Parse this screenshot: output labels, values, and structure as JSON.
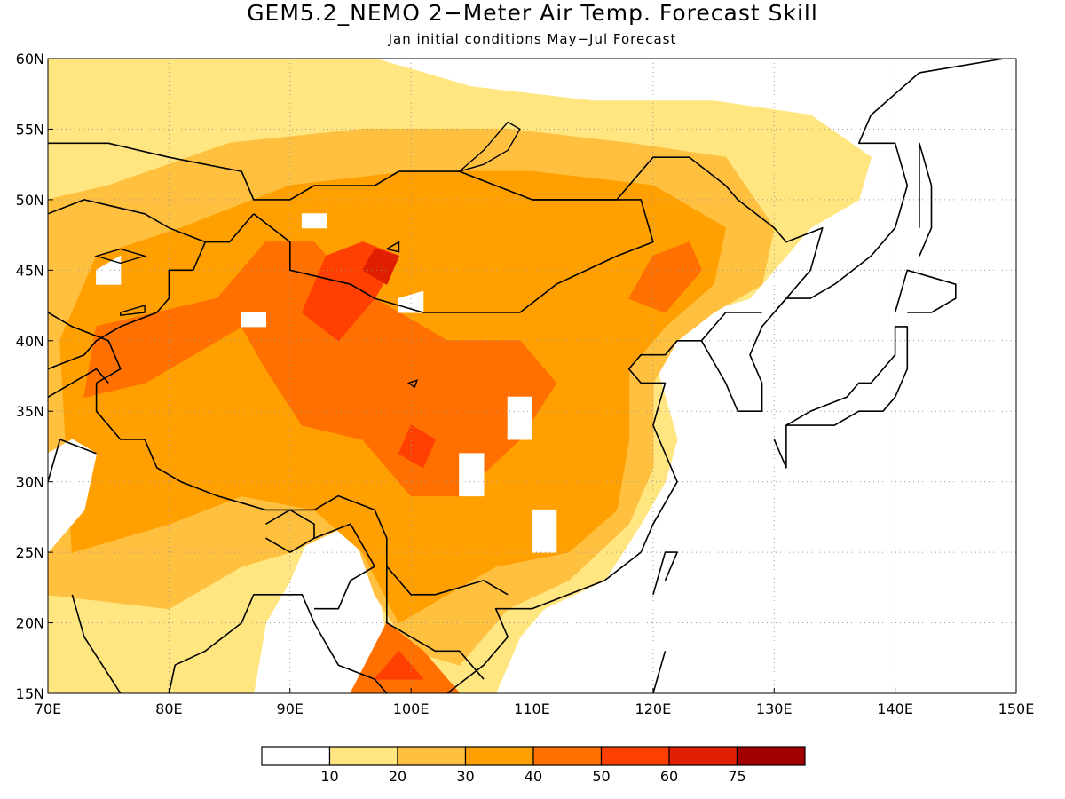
{
  "title": "GEM5.2_NEMO 2−Meter Air Temp. Forecast Skill",
  "subtitle": "Jan initial conditions  May−Jul Forecast",
  "axes": {
    "lon_labels": [
      "70E",
      "80E",
      "90E",
      "100E",
      "110E",
      "120E",
      "130E",
      "140E",
      "150E"
    ],
    "lon_values": [
      70,
      80,
      90,
      100,
      110,
      120,
      130,
      140,
      150
    ],
    "lat_labels": [
      "15N",
      "20N",
      "25N",
      "30N",
      "35N",
      "40N",
      "45N",
      "50N",
      "55N",
      "60N"
    ],
    "lat_values": [
      15,
      20,
      25,
      30,
      35,
      40,
      45,
      50,
      55,
      60
    ],
    "lon_range": [
      70,
      150
    ],
    "lat_range": [
      15,
      60
    ],
    "grid": "dotted"
  },
  "colorbar": {
    "levels": [
      "10",
      "20",
      "30",
      "40",
      "50",
      "60",
      "75"
    ],
    "colors": [
      "#ffffff",
      "#ffe680",
      "#ffc040",
      "#ffa000",
      "#ff7000",
      "#ff4000",
      "#e01e00",
      "#a00000"
    ]
  },
  "field_regions": [
    {
      "level": 1,
      "points": [
        [
          70,
          15
        ],
        [
          87,
          15
        ],
        [
          88,
          20
        ],
        [
          90,
          23
        ],
        [
          92,
          27
        ],
        [
          96,
          29
        ],
        [
          97,
          24
        ],
        [
          98,
          19
        ],
        [
          100,
          15
        ],
        [
          107,
          15
        ],
        [
          109,
          19
        ],
        [
          111,
          21
        ],
        [
          116,
          23
        ],
        [
          119,
          27
        ],
        [
          121,
          30
        ],
        [
          122,
          33
        ],
        [
          121,
          36
        ],
        [
          120,
          39
        ],
        [
          122,
          41
        ],
        [
          124,
          42
        ],
        [
          128,
          43
        ],
        [
          130,
          45
        ],
        [
          133,
          48
        ],
        [
          137,
          50
        ],
        [
          138,
          53
        ],
        [
          133,
          56
        ],
        [
          125,
          57
        ],
        [
          115,
          57
        ],
        [
          105,
          58
        ],
        [
          97,
          60
        ],
        [
          70,
          60
        ]
      ]
    },
    {
      "level": 2,
      "points": [
        [
          70,
          22
        ],
        [
          80,
          21
        ],
        [
          86,
          24
        ],
        [
          90,
          25
        ],
        [
          95,
          27
        ],
        [
          97,
          22
        ],
        [
          100,
          18
        ],
        [
          104,
          17
        ],
        [
          108,
          21
        ],
        [
          113,
          23
        ],
        [
          118,
          27
        ],
        [
          120,
          31
        ],
        [
          120,
          37
        ],
        [
          122,
          40
        ],
        [
          125,
          42
        ],
        [
          129,
          44
        ],
        [
          130,
          48
        ],
        [
          126,
          53
        ],
        [
          118,
          54
        ],
        [
          108,
          55
        ],
        [
          96,
          55
        ],
        [
          85,
          54
        ],
        [
          75,
          51
        ],
        [
          70,
          50
        ]
      ]
    },
    {
      "level": 3,
      "points": [
        [
          72,
          25
        ],
        [
          80,
          27
        ],
        [
          86,
          29
        ],
        [
          92,
          28
        ],
        [
          96,
          25
        ],
        [
          99,
          20
        ],
        [
          103,
          22
        ],
        [
          107,
          24
        ],
        [
          113,
          25
        ],
        [
          117,
          28
        ],
        [
          118,
          33
        ],
        [
          118,
          38
        ],
        [
          121,
          41
        ],
        [
          125,
          44
        ],
        [
          126,
          48
        ],
        [
          120,
          51
        ],
        [
          110,
          52
        ],
        [
          100,
          52
        ],
        [
          90,
          51
        ],
        [
          81,
          48
        ],
        [
          74,
          46
        ],
        [
          71,
          40
        ]
      ]
    },
    {
      "level": 4,
      "points": [
        [
          73,
          36
        ],
        [
          78,
          37
        ],
        [
          82,
          39
        ],
        [
          86,
          41
        ],
        [
          88,
          38
        ],
        [
          91,
          34
        ],
        [
          96,
          33
        ],
        [
          100,
          29
        ],
        [
          104,
          29
        ],
        [
          109,
          33
        ],
        [
          112,
          37
        ],
        [
          109,
          40
        ],
        [
          103,
          40
        ],
        [
          99,
          42
        ],
        [
          95,
          44
        ],
        [
          92,
          47
        ],
        [
          88,
          47
        ],
        [
          84,
          43
        ],
        [
          79,
          42
        ],
        [
          74,
          41
        ]
      ]
    },
    {
      "level": 4,
      "points": [
        [
          95,
          15
        ],
        [
          98,
          20
        ],
        [
          101,
          18
        ],
        [
          104,
          15
        ]
      ]
    },
    {
      "level": 4,
      "points": [
        [
          118,
          43
        ],
        [
          121,
          42
        ],
        [
          124,
          45
        ],
        [
          123,
          47
        ],
        [
          120,
          46
        ]
      ]
    },
    {
      "level": 5,
      "points": [
        [
          91,
          42
        ],
        [
          94,
          40
        ],
        [
          97,
          43
        ],
        [
          99,
          46
        ],
        [
          96,
          47
        ],
        [
          93,
          46
        ]
      ]
    },
    {
      "level": 5,
      "points": [
        [
          99,
          32
        ],
        [
          101,
          31
        ],
        [
          102,
          33
        ],
        [
          100,
          34
        ]
      ]
    },
    {
      "level": 5,
      "points": [
        [
          97,
          16
        ],
        [
          99,
          18
        ],
        [
          101,
          16
        ]
      ]
    },
    {
      "level": 6,
      "points": [
        [
          96,
          45
        ],
        [
          98,
          44
        ],
        [
          99,
          46
        ],
        [
          97,
          46.5
        ]
      ]
    },
    {
      "level": 0,
      "points": [
        [
          74,
          45
        ],
        [
          76,
          46
        ],
        [
          76,
          44
        ],
        [
          74,
          44
        ]
      ]
    },
    {
      "level": 0,
      "points": [
        [
          99,
          43
        ],
        [
          101,
          43.5
        ],
        [
          101,
          42
        ],
        [
          99,
          42
        ]
      ]
    },
    {
      "level": 0,
      "points": [
        [
          108,
          36
        ],
        [
          110,
          36
        ],
        [
          110,
          33
        ],
        [
          108,
          33
        ]
      ]
    },
    {
      "level": 0,
      "points": [
        [
          104,
          32
        ],
        [
          106,
          32
        ],
        [
          106,
          29
        ],
        [
          104,
          29
        ]
      ]
    },
    {
      "level": 0,
      "points": [
        [
          70,
          25
        ],
        [
          73,
          28
        ],
        [
          74,
          32
        ],
        [
          72,
          33
        ],
        [
          70,
          32
        ]
      ]
    },
    {
      "level": 0,
      "points": [
        [
          110,
          28
        ],
        [
          112,
          28
        ],
        [
          112,
          25
        ],
        [
          110,
          25
        ]
      ]
    },
    {
      "level": 0,
      "points": [
        [
          86,
          42
        ],
        [
          88,
          42
        ],
        [
          88,
          41
        ],
        [
          86,
          41
        ]
      ]
    },
    {
      "level": 0,
      "points": [
        [
          91,
          49
        ],
        [
          93,
          49
        ],
        [
          93,
          48
        ],
        [
          91,
          48
        ]
      ]
    }
  ],
  "coastlines": [
    [
      [
        72,
        22
      ],
      [
        73,
        19
      ],
      [
        76,
        15
      ]
    ],
    [
      [
        80,
        15
      ],
      [
        80.5,
        17
      ],
      [
        83,
        18
      ],
      [
        86,
        20
      ],
      [
        87,
        22
      ],
      [
        89,
        22
      ],
      [
        91,
        22
      ],
      [
        92,
        20
      ],
      [
        94,
        17
      ],
      [
        97,
        16
      ],
      [
        98,
        15
      ]
    ],
    [
      [
        100,
        15
      ],
      [
        101,
        14.5
      ]
    ],
    [
      [
        103,
        15
      ],
      [
        106,
        17
      ],
      [
        108,
        19
      ],
      [
        107,
        21
      ],
      [
        110,
        21
      ],
      [
        113,
        22
      ],
      [
        116,
        23
      ],
      [
        119,
        25
      ],
      [
        120,
        27
      ],
      [
        122,
        30
      ],
      [
        121,
        32
      ],
      [
        120,
        34
      ],
      [
        121,
        37
      ],
      [
        119,
        37
      ],
      [
        118,
        38
      ],
      [
        119,
        39
      ],
      [
        121,
        39
      ],
      [
        122,
        40
      ],
      [
        124,
        40
      ],
      [
        126,
        37
      ],
      [
        127,
        35
      ],
      [
        129,
        35
      ],
      [
        129,
        37
      ],
      [
        128,
        39
      ],
      [
        129,
        41
      ],
      [
        131,
        43
      ],
      [
        133,
        43
      ],
      [
        135,
        44
      ],
      [
        138,
        46
      ],
      [
        140,
        48
      ],
      [
        141,
        51
      ],
      [
        140,
        54
      ],
      [
        137,
        54
      ],
      [
        138,
        56
      ],
      [
        142,
        59
      ],
      [
        149,
        60
      ]
    ],
    [
      [
        130,
        33
      ],
      [
        131,
        31
      ],
      [
        131,
        34
      ],
      [
        133,
        34
      ],
      [
        135,
        34
      ],
      [
        137,
        35
      ],
      [
        139,
        35
      ],
      [
        140,
        36
      ],
      [
        141,
        38
      ],
      [
        141,
        41
      ],
      [
        140,
        41
      ],
      [
        140,
        39
      ],
      [
        139,
        38
      ],
      [
        138,
        37
      ],
      [
        137,
        37
      ],
      [
        136,
        36
      ],
      [
        133,
        35
      ],
      [
        131,
        34
      ]
    ],
    [
      [
        140,
        42
      ],
      [
        141,
        45
      ],
      [
        145,
        44
      ],
      [
        145,
        43
      ],
      [
        143,
        42
      ],
      [
        141,
        42
      ]
    ],
    [
      [
        142,
        46
      ],
      [
        143,
        48
      ],
      [
        143,
        51
      ],
      [
        142,
        54
      ],
      [
        142,
        51
      ],
      [
        142,
        48
      ]
    ],
    [
      [
        120,
        22
      ],
      [
        121,
        25
      ],
      [
        122,
        25
      ],
      [
        121,
        23
      ]
    ],
    [
      [
        120,
        15
      ],
      [
        121,
        18
      ]
    ]
  ],
  "borders": [
    [
      [
        70,
        54
      ],
      [
        75,
        54
      ],
      [
        80,
        53
      ],
      [
        86,
        52
      ],
      [
        87,
        50
      ],
      [
        90,
        50
      ],
      [
        92,
        51
      ],
      [
        97,
        51
      ],
      [
        99,
        52
      ],
      [
        104,
        52
      ],
      [
        107,
        51
      ],
      [
        110,
        50
      ],
      [
        115,
        50
      ],
      [
        117,
        50
      ],
      [
        120,
        53
      ],
      [
        123,
        53
      ],
      [
        126,
        51
      ],
      [
        127,
        50
      ],
      [
        130,
        48
      ],
      [
        131,
        47
      ],
      [
        134,
        48
      ],
      [
        133,
        45
      ],
      [
        131,
        43
      ],
      [
        130,
        42
      ]
    ],
    [
      [
        87,
        49
      ],
      [
        90,
        47
      ],
      [
        90,
        45
      ],
      [
        95,
        44
      ],
      [
        97,
        43
      ],
      [
        101,
        42
      ],
      [
        105,
        42
      ],
      [
        109,
        42
      ],
      [
        112,
        44
      ],
      [
        117,
        46
      ],
      [
        120,
        47
      ],
      [
        119,
        50
      ],
      [
        116,
        50
      ],
      [
        110,
        50
      ]
    ],
    [
      [
        70,
        42
      ],
      [
        72,
        41
      ],
      [
        75,
        40
      ],
      [
        76,
        38
      ],
      [
        74,
        37
      ],
      [
        74,
        35
      ],
      [
        76,
        33
      ],
      [
        78,
        33
      ],
      [
        79,
        31
      ],
      [
        81,
        30
      ],
      [
        84,
        29
      ],
      [
        88,
        28
      ],
      [
        91,
        28
      ],
      [
        92,
        28
      ],
      [
        94,
        29
      ],
      [
        97,
        28
      ],
      [
        98,
        26
      ],
      [
        98,
        24
      ],
      [
        100,
        22
      ],
      [
        102,
        22
      ],
      [
        106,
        23
      ],
      [
        108,
        22
      ]
    ],
    [
      [
        70,
        38
      ],
      [
        73,
        39
      ],
      [
        74,
        40
      ],
      [
        76,
        41
      ],
      [
        79,
        42
      ],
      [
        80,
        43
      ],
      [
        80,
        45
      ],
      [
        82,
        45
      ],
      [
        83,
        47
      ],
      [
        85,
        47
      ],
      [
        87,
        49
      ]
    ],
    [
      [
        70,
        36
      ],
      [
        72,
        37
      ],
      [
        74,
        38
      ],
      [
        75,
        37
      ]
    ],
    [
      [
        88,
        27
      ],
      [
        90,
        28
      ],
      [
        92,
        27
      ],
      [
        92,
        26
      ],
      [
        90,
        25
      ],
      [
        88,
        26
      ]
    ],
    [
      [
        92,
        26
      ],
      [
        95,
        27
      ],
      [
        97,
        24
      ],
      [
        95,
        23
      ],
      [
        94,
        21
      ],
      [
        92,
        21
      ]
    ],
    [
      [
        98,
        24
      ],
      [
        98,
        20
      ],
      [
        100,
        19
      ],
      [
        102,
        18
      ],
      [
        104,
        18
      ],
      [
        106,
        16
      ]
    ],
    [
      [
        124,
        40
      ],
      [
        126,
        42
      ],
      [
        129,
        42
      ]
    ],
    [
      [
        70,
        30
      ],
      [
        71,
        33
      ],
      [
        74,
        32
      ]
    ],
    [
      [
        70,
        49
      ],
      [
        73,
        50
      ],
      [
        78,
        49
      ],
      [
        80,
        48
      ],
      [
        83,
        47
      ]
    ]
  ],
  "lakes": [
    [
      [
        104,
        52
      ],
      [
        106,
        52.5
      ],
      [
        108,
        53.5
      ],
      [
        109,
        55
      ],
      [
        108,
        55.5
      ],
      [
        106,
        53.5
      ]
    ],
    [
      [
        74,
        46
      ],
      [
        76,
        46.5
      ],
      [
        78,
        46
      ],
      [
        76,
        45.5
      ]
    ],
    [
      [
        76,
        42
      ],
      [
        78,
        42.5
      ],
      [
        78,
        42
      ],
      [
        76,
        41.8
      ]
    ],
    [
      [
        99.8,
        37
      ],
      [
        100.5,
        37.2
      ],
      [
        100.3,
        36.7
      ]
    ],
    [
      [
        98,
        46.5
      ],
      [
        99,
        47
      ],
      [
        99,
        46.3
      ]
    ]
  ]
}
